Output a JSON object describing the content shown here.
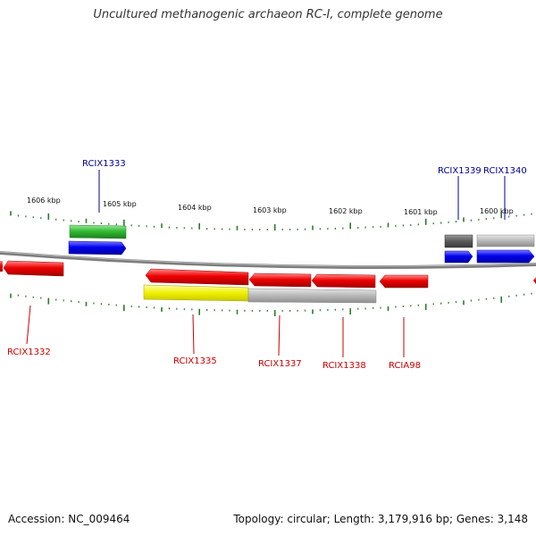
{
  "title": "Uncultured methanogenic archaeon RC-I, complete genome",
  "footer": {
    "accession": "Accession: NC_009464",
    "summary": "Topology: circular; Length: 3,179,916 bp; Genes: 3,148"
  },
  "colors": {
    "backbone": "#808080",
    "tick": "#2a7a2a",
    "red": "#ee0000",
    "blue": "#0000ee",
    "green": "#33bb33",
    "yellow": "#f0f000",
    "light_gray": "#b8b8b8",
    "dark_gray": "#5a5a5a",
    "label_red": "#cc0000",
    "label_blue": "#000099"
  },
  "kbp_labels": [
    "1606 kbp",
    "1605 kbp",
    "1604 kbp",
    "1603 kbp",
    "1602 kbp",
    "1601 kbp",
    "1600 kbp"
  ],
  "gene_labels": {
    "rcix1333": "RCIX1333",
    "rcix1339": "RCIX1339",
    "rcix1340": "RCIX1340",
    "rcix1332": "RCIX1332",
    "rcix1335": "RCIX1335",
    "rcix1337": "RCIX1337",
    "rcix1338": "RCIX1338",
    "rcia98": "RCIA98"
  }
}
